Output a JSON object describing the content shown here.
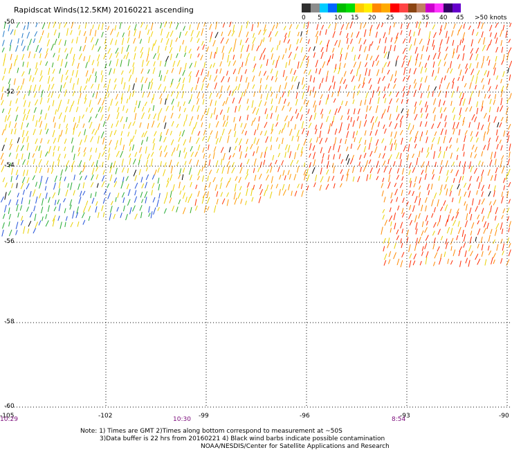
{
  "title": "Rapidscat Winds(12.5KM) 20160221 ascending",
  "legend": {
    "colors": [
      "#303030",
      "#8c8c8c",
      "#00ccff",
      "#0066ff",
      "#00bb00",
      "#00dd00",
      "#ffcc00",
      "#ffee00",
      "#ff8800",
      "#ffaa00",
      "#ff0000",
      "#ff4444",
      "#8b4513",
      "#c08060",
      "#cc00cc",
      "#ff33ff",
      "#330066",
      "#6600cc"
    ],
    "labels": [
      "0",
      "5",
      "10",
      "15",
      "20",
      "25",
      "30",
      "35",
      "40",
      "45",
      ">50 knots"
    ]
  },
  "latitudes": [
    "-50",
    "-52",
    "-54",
    "-56",
    "-58",
    "-60"
  ],
  "longitudes": [
    "-105",
    "-102",
    "-99",
    "-96",
    "-93",
    "-90"
  ],
  "times": [
    "10:29",
    "10:30",
    "8:54"
  ],
  "notes": [
    "Note: 1) Times are GMT 2)Times along bottom correspond to measurement at ~50S",
    "3)Data buffer is 22 hrs from 20160221 4) Black wind barbs indicate possible contamination",
    "NOAA/NESDIS/Center for Satellite Applications and Research"
  ]
}
